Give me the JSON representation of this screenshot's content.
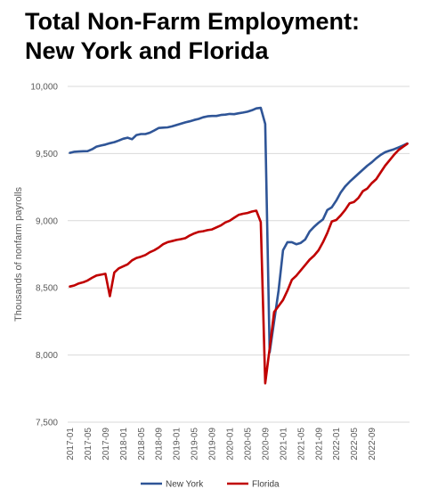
{
  "chart_data": {
    "type": "line",
    "title_lines": [
      "Total Non-Farm Employment:",
      "New York and Florida"
    ],
    "ylabel": "Thousands of nonfarm payrolls",
    "xlabel": "",
    "ylim": [
      7500,
      10000
    ],
    "yticks": [
      7500,
      8000,
      8500,
      9000,
      9500,
      10000
    ],
    "ytick_labels": [
      "7,500",
      "8,000",
      "8,500",
      "9,000",
      "9,500",
      "10,000"
    ],
    "x_start": "2017-01",
    "xtick_labels": [
      "2017-01",
      "2017-05",
      "2017-09",
      "2018-01",
      "2018-05",
      "2018-09",
      "2019-01",
      "2019-05",
      "2019-09",
      "2020-01",
      "2020-05",
      "2020-09",
      "2021-01",
      "2021-05",
      "2021-09",
      "2022-01",
      "2022-05",
      "2022-09"
    ],
    "grid": "horizontal",
    "legend": "bottom",
    "series": [
      {
        "name": "New York",
        "color": "#2f5597",
        "values": [
          9505,
          9513,
          9515,
          9517,
          9518,
          9532,
          9552,
          9560,
          9567,
          9577,
          9585,
          9597,
          9610,
          9618,
          9607,
          9638,
          9645,
          9645,
          9655,
          9672,
          9690,
          9693,
          9695,
          9702,
          9712,
          9722,
          9732,
          9740,
          9750,
          9758,
          9770,
          9777,
          9780,
          9780,
          9787,
          9790,
          9795,
          9793,
          9800,
          9805,
          9812,
          9822,
          9836,
          9840,
          9720,
          8020,
          8250,
          8480,
          8780,
          8840,
          8840,
          8825,
          8835,
          8860,
          8920,
          8955,
          8985,
          9010,
          9080,
          9100,
          9150,
          9210,
          9255,
          9290,
          9320,
          9350,
          9380,
          9410,
          9435,
          9465,
          9490,
          9510,
          9522,
          9532,
          9545,
          9560,
          9575
        ]
      },
      {
        "name": "Florida",
        "color": "#c00000",
        "values": [
          8510,
          8518,
          8533,
          8542,
          8555,
          8575,
          8592,
          8598,
          8605,
          8438,
          8615,
          8645,
          8660,
          8675,
          8705,
          8723,
          8732,
          8745,
          8765,
          8780,
          8800,
          8825,
          8840,
          8848,
          8857,
          8863,
          8870,
          8890,
          8905,
          8917,
          8922,
          8930,
          8935,
          8950,
          8965,
          8987,
          9000,
          9022,
          9043,
          9052,
          9058,
          9068,
          9075,
          8990,
          7790,
          8050,
          8320,
          8365,
          8410,
          8480,
          8560,
          8590,
          8630,
          8670,
          8710,
          8740,
          8780,
          8840,
          8910,
          8995,
          9005,
          9040,
          9080,
          9130,
          9140,
          9170,
          9220,
          9240,
          9280,
          9310,
          9360,
          9410,
          9450,
          9490,
          9525,
          9550,
          9573
        ]
      }
    ]
  }
}
